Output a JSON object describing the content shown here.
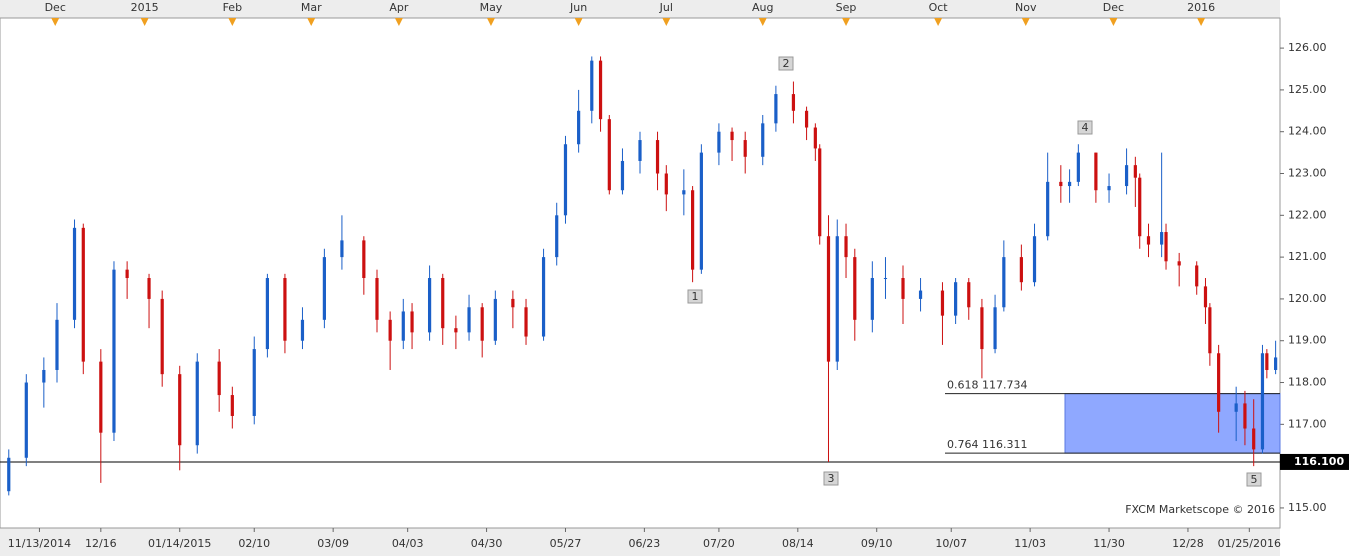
{
  "chart_data": {
    "type": "candlestick",
    "up_color": "#1a5fc8",
    "down_color": "#cc1010",
    "x": [
      1,
      5,
      9,
      12,
      16,
      18,
      22,
      25,
      28,
      33,
      36,
      40,
      44,
      49,
      52,
      57,
      60,
      64,
      68,
      73,
      77,
      82,
      85,
      88,
      91,
      93,
      97,
      100,
      103,
      106,
      109,
      112,
      116,
      119,
      123,
      126,
      128,
      131,
      134,
      136,
      138,
      141,
      145,
      149,
      151,
      155,
      157,
      159,
      163,
      166,
      169,
      173,
      176,
      180,
      183,
      185,
      186,
      188,
      190,
      192,
      194,
      198,
      201,
      205,
      209,
      214,
      217,
      220,
      223,
      226,
      228,
      232,
      235,
      238,
      241,
      243,
      245,
      249,
      252,
      256,
      258,
      259,
      261,
      264,
      265,
      268,
      272,
      274,
      275,
      277,
      281,
      283,
      285,
      287,
      288,
      290
    ],
    "open": [
      115.4,
      116.2,
      118.0,
      118.3,
      119.5,
      121.7,
      118.5,
      116.8,
      120.7,
      120.5,
      120.0,
      118.2,
      116.5,
      118.5,
      117.7,
      117.2,
      118.8,
      120.5,
      119.0,
      119.5,
      121.0,
      121.4,
      120.5,
      119.5,
      119.0,
      119.7,
      119.2,
      120.5,
      119.3,
      119.2,
      119.8,
      119.0,
      120.0,
      119.8,
      119.1,
      121.0,
      122.0,
      123.7,
      124.5,
      125.7,
      124.3,
      122.6,
      123.3,
      123.8,
      123.0,
      122.5,
      122.6,
      120.7,
      123.5,
      124.0,
      123.8,
      123.4,
      124.2,
      124.9,
      124.5,
      124.1,
      123.6,
      121.5,
      118.5,
      121.5,
      121.0,
      119.5,
      120.5,
      120.5,
      120.0,
      120.2,
      119.6,
      120.4,
      119.8,
      118.8,
      119.8,
      121.0,
      120.4,
      121.5,
      122.8,
      122.7,
      122.8,
      123.5,
      122.6,
      122.7,
      123.2,
      122.9,
      121.5,
      121.3,
      121.6,
      120.9,
      120.8,
      120.3,
      119.8,
      118.7,
      117.3,
      117.5,
      116.9,
      116.4,
      118.7,
      118.3
    ],
    "high": [
      116.4,
      118.2,
      118.6,
      119.9,
      121.9,
      121.8,
      118.8,
      120.9,
      120.9,
      120.6,
      120.2,
      118.4,
      118.7,
      118.8,
      117.9,
      119.1,
      120.6,
      120.6,
      119.8,
      121.2,
      122.0,
      121.5,
      120.7,
      119.7,
      120.0,
      119.9,
      120.8,
      120.6,
      119.6,
      120.1,
      119.9,
      120.2,
      120.2,
      120.0,
      121.2,
      122.3,
      123.9,
      125.0,
      125.8,
      125.8,
      124.4,
      123.6,
      124.0,
      124.0,
      123.2,
      123.1,
      122.7,
      123.7,
      124.2,
      124.1,
      124.0,
      124.4,
      125.1,
      125.2,
      124.6,
      124.2,
      123.7,
      122.0,
      121.9,
      121.8,
      121.2,
      120.9,
      121.0,
      120.8,
      120.5,
      120.4,
      120.5,
      120.5,
      120.0,
      120.1,
      121.4,
      121.3,
      121.8,
      123.5,
      123.2,
      123.1,
      123.7,
      123.5,
      123.0,
      123.6,
      123.4,
      123.0,
      121.8,
      123.5,
      121.8,
      121.1,
      120.9,
      120.5,
      119.9,
      118.9,
      117.9,
      117.8,
      117.6,
      118.9,
      118.8,
      119.0
    ],
    "low": [
      115.3,
      116.0,
      117.4,
      118.0,
      119.3,
      118.2,
      115.6,
      116.6,
      120.0,
      119.3,
      117.9,
      115.9,
      116.3,
      117.3,
      116.9,
      117.0,
      118.6,
      118.7,
      118.8,
      119.3,
      120.7,
      120.1,
      119.2,
      118.3,
      118.8,
      118.8,
      119.0,
      118.9,
      118.8,
      119.0,
      118.6,
      118.9,
      119.3,
      118.9,
      119.0,
      120.8,
      121.8,
      123.5,
      124.2,
      124.0,
      122.5,
      122.5,
      123.0,
      122.6,
      122.1,
      122.0,
      120.4,
      120.6,
      123.2,
      123.3,
      123.0,
      123.2,
      124.0,
      124.2,
      123.8,
      123.3,
      121.3,
      116.1,
      118.3,
      120.5,
      119.0,
      119.2,
      120.0,
      119.4,
      119.7,
      118.9,
      119.4,
      119.5,
      118.1,
      118.7,
      119.7,
      120.2,
      120.3,
      121.4,
      122.3,
      122.3,
      122.7,
      122.3,
      122.3,
      122.5,
      122.2,
      121.2,
      121.0,
      121.0,
      120.7,
      120.3,
      120.1,
      119.4,
      118.4,
      116.8,
      116.6,
      116.5,
      116.0,
      116.3,
      118.1,
      118.2
    ],
    "close": [
      116.2,
      118.0,
      118.3,
      119.5,
      121.7,
      118.5,
      116.8,
      120.7,
      120.5,
      120.0,
      118.2,
      116.5,
      118.5,
      117.7,
      117.2,
      118.8,
      120.5,
      119.0,
      119.5,
      121.0,
      121.4,
      120.5,
      119.5,
      119.0,
      119.7,
      119.2,
      120.5,
      119.3,
      119.2,
      119.8,
      119.0,
      120.0,
      119.8,
      119.1,
      121.0,
      122.0,
      123.7,
      124.5,
      125.7,
      124.3,
      122.6,
      123.3,
      123.8,
      123.0,
      122.5,
      122.6,
      120.7,
      123.5,
      124.0,
      123.8,
      123.4,
      124.2,
      124.9,
      124.5,
      124.1,
      123.6,
      121.5,
      118.5,
      121.5,
      121.0,
      119.5,
      120.5,
      120.5,
      120.0,
      120.2,
      119.6,
      120.4,
      119.8,
      118.8,
      119.8,
      121.0,
      120.4,
      121.5,
      122.8,
      122.7,
      122.8,
      123.5,
      122.6,
      122.7,
      123.2,
      122.9,
      121.5,
      121.3,
      121.6,
      120.9,
      120.8,
      120.3,
      119.8,
      118.7,
      117.3,
      117.5,
      116.9,
      116.4,
      118.7,
      118.3,
      118.6
    ],
    "xlim": [
      -1,
      291
    ],
    "ylim": [
      114.52,
      126.72
    ],
    "yticks": [
      {
        "value": 115,
        "label": "115.00"
      },
      {
        "value": 116,
        "label": "116.00"
      },
      {
        "value": 117,
        "label": "117.00"
      },
      {
        "value": 118,
        "label": "118.00"
      },
      {
        "value": 119,
        "label": "119.00"
      },
      {
        "value": 120,
        "label": "120.00"
      },
      {
        "value": 121,
        "label": "121.00"
      },
      {
        "value": 122,
        "label": "122.00"
      },
      {
        "value": 123,
        "label": "123.00"
      },
      {
        "value": 124,
        "label": "124.00"
      },
      {
        "value": 125,
        "label": "125.00"
      },
      {
        "value": 126,
        "label": "126.00"
      }
    ],
    "xticks": [
      {
        "value": 8,
        "label": "11/13/2014"
      },
      {
        "value": 22,
        "label": "12/16"
      },
      {
        "value": 40,
        "label": "01/14/2015"
      },
      {
        "value": 57,
        "label": "02/10"
      },
      {
        "value": 75,
        "label": "03/09"
      },
      {
        "value": 92,
        "label": "04/03"
      },
      {
        "value": 110,
        "label": "04/30"
      },
      {
        "value": 128,
        "label": "05/27"
      },
      {
        "value": 146,
        "label": "06/23"
      },
      {
        "value": 163,
        "label": "07/20"
      },
      {
        "value": 181,
        "label": "08/14"
      },
      {
        "value": 199,
        "label": "09/10"
      },
      {
        "value": 216,
        "label": "10/07"
      },
      {
        "value": 234,
        "label": "11/03"
      },
      {
        "value": 252,
        "label": "11/30"
      },
      {
        "value": 270,
        "label": "12/28"
      },
      {
        "value": 284,
        "label": "01/25/2016"
      }
    ],
    "top_ticks": [
      {
        "value": 11.6,
        "label": "Dec"
      },
      {
        "value": 32,
        "label": "2015"
      },
      {
        "value": 52,
        "label": "Feb"
      },
      {
        "value": 70,
        "label": "Mar"
      },
      {
        "value": 90,
        "label": "Apr"
      },
      {
        "value": 111,
        "label": "May"
      },
      {
        "value": 131,
        "label": "Jun"
      },
      {
        "value": 151,
        "label": "Jul"
      },
      {
        "value": 173,
        "label": "Aug"
      },
      {
        "value": 192,
        "label": "Sep"
      },
      {
        "value": 213,
        "label": "Oct"
      },
      {
        "value": 233,
        "label": "Nov"
      },
      {
        "value": 253,
        "label": "Dec"
      },
      {
        "value": 273,
        "label": "2016"
      }
    ],
    "support": {
      "value": 116.1,
      "label": "116.100"
    },
    "fib_levels": [
      {
        "value": 117.734,
        "label": "0.618 117.734"
      },
      {
        "value": 116.311,
        "label": "0.764 116.311"
      }
    ],
    "wave_labels": [
      "1",
      "2",
      "3",
      "4",
      "5"
    ],
    "watermark": "FXCM Marketscope © 2016"
  }
}
